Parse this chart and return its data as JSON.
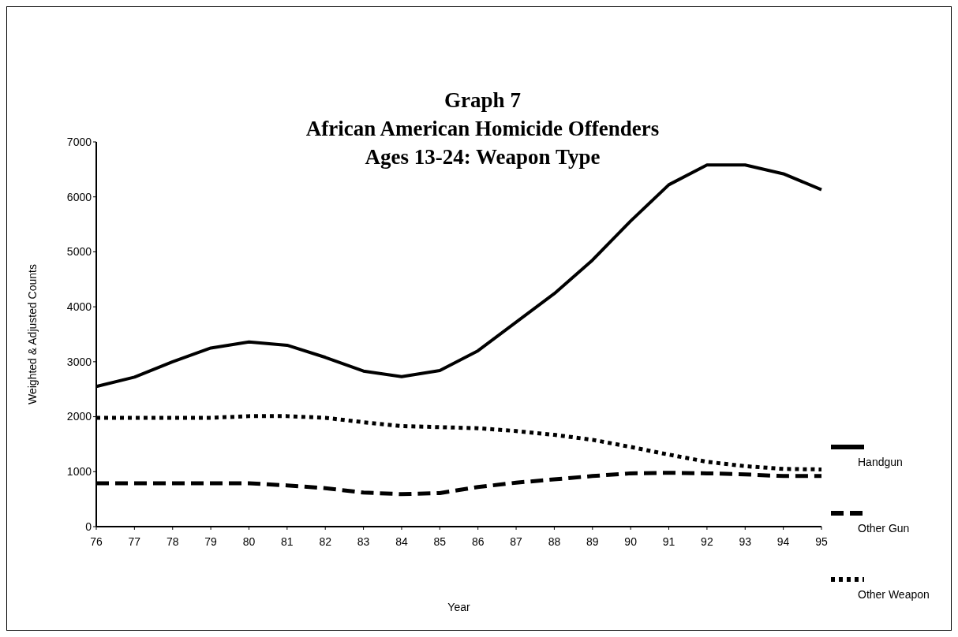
{
  "chart_data": {
    "type": "line",
    "title": "Graph 7\nAfrican American Homicide Offenders\nAges 13-24: Weapon Type",
    "xlabel": "Year",
    "ylabel": "Weighted & Adjusted Counts",
    "categories": [
      "76",
      "77",
      "78",
      "79",
      "80",
      "81",
      "82",
      "83",
      "84",
      "85",
      "86",
      "87",
      "88",
      "89",
      "90",
      "91",
      "92",
      "93",
      "94",
      "95"
    ],
    "series": [
      {
        "name": "Handgun",
        "color": "#000000",
        "line_style": "solid",
        "values": [
          2550,
          2720,
          3000,
          3250,
          3360,
          3300,
          3080,
          2830,
          2730,
          2840,
          3200,
          3720,
          4240,
          4850,
          5560,
          6220,
          6580,
          6580,
          6420,
          6130
        ]
      },
      {
        "name": "Other Gun",
        "color": "#000000",
        "line_style": "dashed",
        "values": [
          790,
          790,
          790,
          790,
          790,
          750,
          700,
          620,
          590,
          610,
          720,
          800,
          860,
          920,
          970,
          980,
          970,
          950,
          920,
          920
        ]
      },
      {
        "name": "Other Weapon",
        "color": "#000000",
        "line_style": "dotted",
        "values": [
          1980,
          1980,
          1980,
          1980,
          2010,
          2010,
          1980,
          1900,
          1830,
          1810,
          1790,
          1740,
          1670,
          1580,
          1450,
          1310,
          1180,
          1100,
          1050,
          1040
        ]
      }
    ],
    "ylim": [
      0,
      7000
    ],
    "yticks": [
      0,
      1000,
      2000,
      3000,
      4000,
      5000,
      6000,
      7000
    ],
    "grid": false,
    "legend": "right",
    "marker": "none"
  }
}
